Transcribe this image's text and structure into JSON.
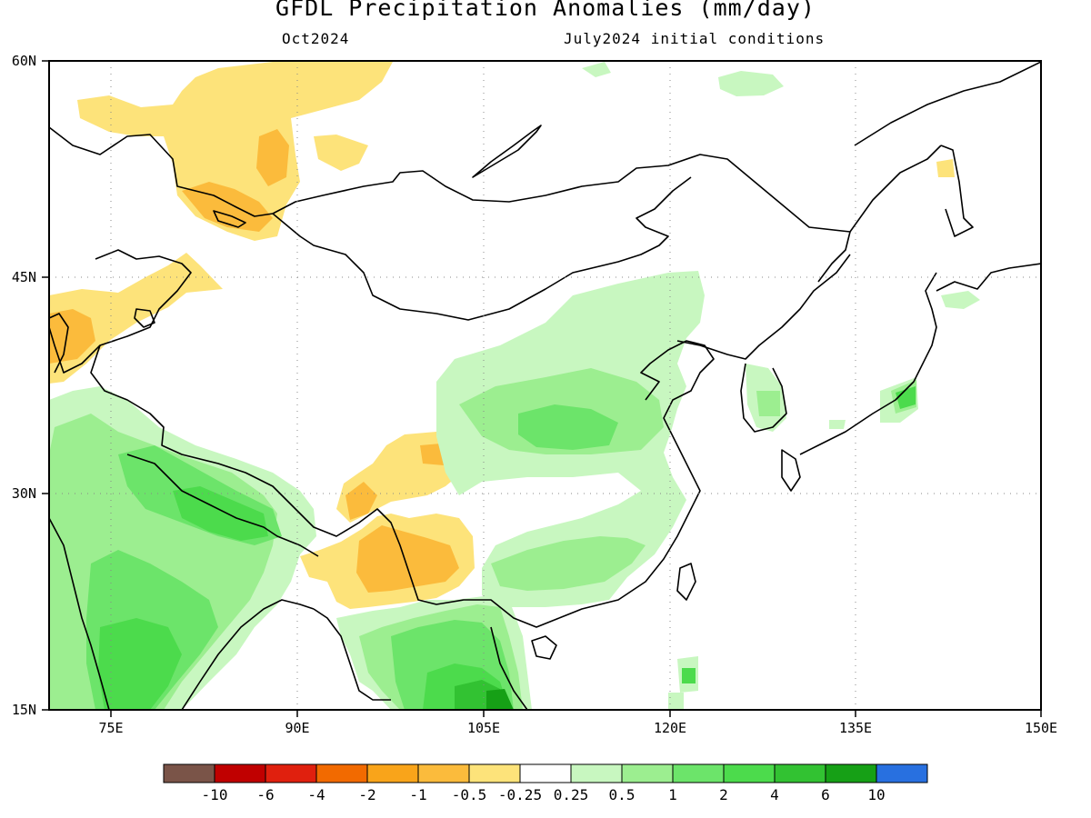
{
  "title": "GFDL Precipitation Anomalies (mm/day)",
  "subtitle_left": "Oct2024",
  "subtitle_right": "July2024 initial conditions",
  "axes": {
    "lat_labels": [
      "60N",
      "45N",
      "30N",
      "15N"
    ],
    "lon_labels": [
      "75E",
      "90E",
      "105E",
      "120E",
      "135E",
      "150E"
    ]
  },
  "colorbar": {
    "colors": [
      "#7a5448",
      "#c00000",
      "#e0200e",
      "#f26a00",
      "#f9a41a",
      "#fbbb3c",
      "#fde37a",
      "#ffffff",
      "#c8f7c0",
      "#9cee90",
      "#6ce46a",
      "#4cdb4c",
      "#32c232",
      "#16a016",
      "#2870e0"
    ],
    "labels": [
      "-10",
      "-6",
      "-4",
      "-2",
      "-1",
      "-0.5",
      "-0.25",
      "0.25",
      "0.5",
      "1",
      "2",
      "4",
      "6",
      "10"
    ]
  }
}
